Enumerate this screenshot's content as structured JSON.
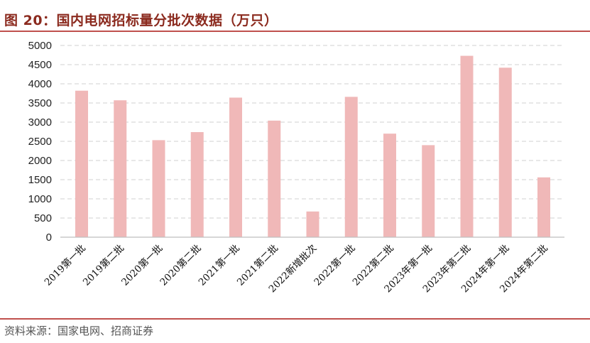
{
  "header": {
    "title": "图 20：国内电网招标量分批次数据（万只）"
  },
  "footer": {
    "source": "资料来源：国家电网、招商证券"
  },
  "colors": {
    "bar": "#F0B8B8",
    "rule": "#C0504D",
    "title": "#8B2A1E",
    "grid": "#d9d9d9"
  },
  "chart_data": {
    "type": "bar",
    "title": "图 20：国内电网招标量分批次数据（万只）",
    "xlabel": "",
    "ylabel": "",
    "ylim": [
      0,
      5000
    ],
    "yticks": [
      0,
      500,
      1000,
      1500,
      2000,
      2500,
      3000,
      3500,
      4000,
      4500,
      5000
    ],
    "grid": true,
    "legend": "none",
    "categories": [
      "2019第一批",
      "2019第二批",
      "2020第一批",
      "2020第二批",
      "2021第一批",
      "2021第二批",
      "2022新增批次",
      "2022第一批",
      "2022第二批",
      "2023年第一批",
      "2023年第二批",
      "2024年第一批",
      "2024年第二批"
    ],
    "values": [
      3820,
      3570,
      2530,
      2740,
      3640,
      3040,
      670,
      3660,
      2700,
      2400,
      4730,
      4420,
      1560
    ]
  }
}
